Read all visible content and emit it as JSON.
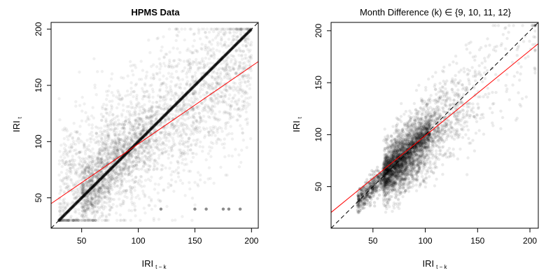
{
  "chart_data": [
    {
      "type": "scatter",
      "title": "HPMS Data",
      "title_bold": true,
      "xlabel": "IRI",
      "xlabel_sub": "t − k",
      "ylabel": "IRI",
      "ylabel_sub": "t",
      "xlim": [
        23,
        206
      ],
      "ylim": [
        23,
        206
      ],
      "xticks": [
        50,
        100,
        150,
        200
      ],
      "yticks": [
        50,
        100,
        150,
        200
      ],
      "grid": false,
      "reference_line": {
        "style": "dashed",
        "color": "#000000",
        "slope": 1,
        "intercept": 0
      },
      "fit_line": {
        "color": "#ff0000",
        "slope": 0.69,
        "intercept": 29
      },
      "point_color": "#000000",
      "notes_visible": "dense diagonal y = x plus broad scatter; row of points at y ≈ 40"
    },
    {
      "type": "scatter",
      "title": "Month Difference (k) ∈ {9, 10, 11, 12}",
      "title_bold": false,
      "xlabel": "IRI",
      "xlabel_sub": "t − k",
      "ylabel": "IRI",
      "ylabel_sub": "t",
      "xlim": [
        10,
        208
      ],
      "ylim": [
        10,
        208
      ],
      "xticks": [
        50,
        100,
        150,
        200
      ],
      "yticks": [
        50,
        100,
        150,
        200
      ],
      "grid": false,
      "reference_line": {
        "style": "dashed",
        "color": "#000000",
        "slope": 1,
        "intercept": 0
      },
      "fit_line": {
        "color": "#ff0000",
        "slope": 0.82,
        "intercept": 17
      },
      "point_color": "#000000"
    }
  ]
}
